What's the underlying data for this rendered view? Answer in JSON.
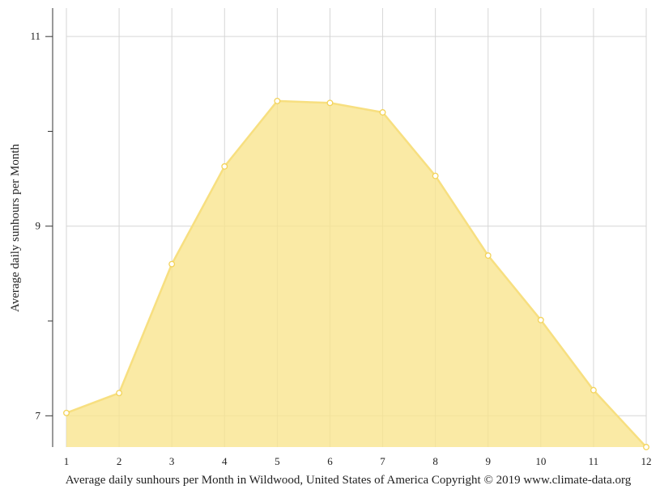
{
  "chart_data": {
    "type": "area",
    "x": [
      1,
      2,
      3,
      4,
      5,
      6,
      7,
      8,
      9,
      10,
      11,
      12
    ],
    "values": [
      7.03,
      7.24,
      8.6,
      9.63,
      10.32,
      10.3,
      10.2,
      9.53,
      8.69,
      8.01,
      7.27,
      6.67
    ],
    "title": "",
    "xlabel": "Average daily sunhours per Month in Wildwood, United States of America Copyright © 2019 www.climate-data.org",
    "ylabel": "Average daily sunhours per Month",
    "xlim": [
      1,
      12
    ],
    "ylim": [
      6.67,
      11.3
    ],
    "y_ticks": [
      7,
      9,
      11
    ],
    "y_tick_labels": [
      "7",
      "9",
      "11"
    ],
    "y_minor_ticks": [
      8,
      10
    ],
    "x_tick_labels": [
      "1",
      "2",
      "3",
      "4",
      "5",
      "6",
      "7",
      "8",
      "9",
      "10",
      "11",
      "12"
    ],
    "grid": true,
    "legend": "none",
    "colors": {
      "fill": "#f8e48c",
      "line": "#f7df80",
      "marker_stroke": "#f3d35a",
      "marker_fill": "#ffffff",
      "grid": "#d6d6d6",
      "axis": "#333333"
    }
  }
}
